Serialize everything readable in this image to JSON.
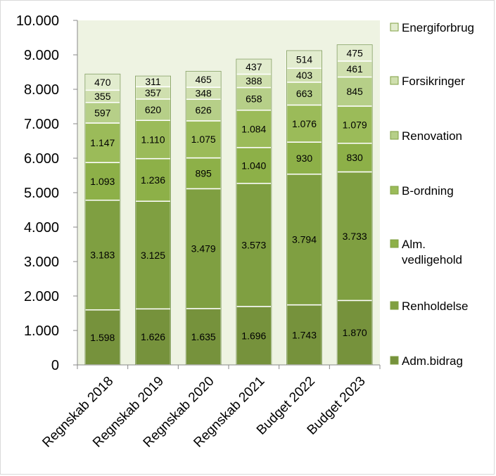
{
  "chart_data": {
    "type": "bar",
    "stacked": true,
    "categories": [
      "Regnskab 2018",
      "Regnskab 2019",
      "Regnskab 2020",
      "Regnskab 2021",
      "Budget 2022",
      "Budget 2023"
    ],
    "series": [
      {
        "name": "Adm.bidrag",
        "values": [
          1598,
          1626,
          1635,
          1696,
          1743,
          1870
        ],
        "labels": [
          "1.598",
          "1.626",
          "1.635",
          "1.696",
          "1.743",
          "1.870"
        ],
        "color": "#76923c"
      },
      {
        "name": "Renholdelse",
        "values": [
          3183,
          3125,
          3479,
          3573,
          3794,
          3733
        ],
        "labels": [
          "3.183",
          "3.125",
          "3.479",
          "3.573",
          "3.794",
          "3.733"
        ],
        "color": "#7f9f41"
      },
      {
        "name": "Alm. vedligehold",
        "values": [
          1093,
          1236,
          895,
          1040,
          930,
          830
        ],
        "labels": [
          "1.093",
          "1.236",
          "895",
          "1.040",
          "930",
          "830"
        ],
        "color": "#8db048"
      },
      {
        "name": "B-ordning",
        "values": [
          1147,
          1110,
          1075,
          1084,
          1076,
          1079
        ],
        "labels": [
          "1.147",
          "1.110",
          "1.075",
          "1.084",
          "1.076",
          "1.079"
        ],
        "color": "#9bbb59"
      },
      {
        "name": "Renovation",
        "values": [
          597,
          620,
          626,
          658,
          663,
          845
        ],
        "labels": [
          "597",
          "620",
          "626",
          "658",
          "663",
          "845"
        ],
        "color": "#b6cf88"
      },
      {
        "name": "Forsikringer",
        "values": [
          355,
          357,
          348,
          388,
          403,
          461
        ],
        "labels": [
          "355",
          "357",
          "348",
          "388",
          "403",
          "461"
        ],
        "color": "#cfdfae"
      },
      {
        "name": "Energiforbrug",
        "values": [
          470,
          311,
          465,
          437,
          514,
          475
        ],
        "labels": [
          "470",
          "311",
          "465",
          "437",
          "514",
          "475"
        ],
        "color": "#e2ecce"
      }
    ],
    "legend": {
      "placement": "right",
      "entries": [
        {
          "lines": [
            "Energiforbrug"
          ],
          "color": "#e2ecce"
        },
        {
          "lines": [
            "Forsikringer"
          ],
          "color": "#cfdfae"
        },
        {
          "lines": [
            "Renovation"
          ],
          "color": "#b6cf88"
        },
        {
          "lines": [
            "B-ordning"
          ],
          "color": "#9bbb59"
        },
        {
          "lines": [
            "Alm.",
            "vedligehold"
          ],
          "color": "#8db048"
        },
        {
          "lines": [
            "Renholdelse"
          ],
          "color": "#7f9f41"
        },
        {
          "lines": [
            "Adm.bidrag"
          ],
          "color": "#76923c"
        }
      ]
    },
    "ylim": [
      0,
      10000
    ],
    "yticks": [
      0,
      1000,
      2000,
      3000,
      4000,
      5000,
      6000,
      7000,
      8000,
      9000,
      10000
    ],
    "ytick_labels": [
      "0",
      "1.000",
      "2.000",
      "3.000",
      "4.000",
      "5.000",
      "6.000",
      "7.000",
      "8.000",
      "9.000",
      "10.000"
    ],
    "plot_background": "#eef3e2",
    "bar_edge_color": "#ffffff",
    "title": "",
    "xlabel": "",
    "ylabel": "",
    "grid": false
  }
}
